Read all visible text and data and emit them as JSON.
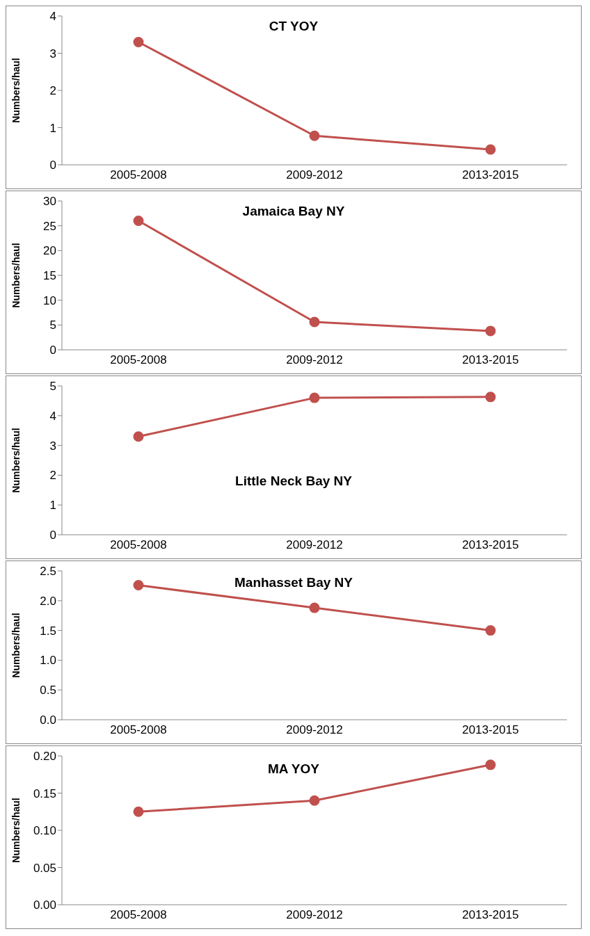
{
  "chart_data": [
    {
      "type": "line",
      "title": "CT YOY",
      "ylabel": "Numbers/haul",
      "categories": [
        "2005-2008",
        "2009-2012",
        "2013-2015"
      ],
      "series": [
        {
          "color": "#c0504d",
          "values": [
            3.3,
            0.78,
            0.41
          ]
        }
      ],
      "ylim": [
        0,
        4
      ],
      "yticks": [
        0,
        1,
        2,
        3,
        4
      ],
      "grid": false,
      "legend": false,
      "marker": "circle"
    },
    {
      "type": "line",
      "title": "Jamaica Bay NY",
      "ylabel": "Numbers/haul",
      "categories": [
        "2005-2008",
        "2009-2012",
        "2013-2015"
      ],
      "series": [
        {
          "color": "#c0504d",
          "values": [
            26,
            5.6,
            3.8
          ]
        }
      ],
      "ylim": [
        0,
        30
      ],
      "yticks": [
        0,
        5,
        10,
        15,
        20,
        25,
        30
      ],
      "grid": false,
      "legend": false,
      "marker": "circle"
    },
    {
      "type": "line",
      "title": "Little Neck Bay NY",
      "ylabel": "Numbers/haul",
      "categories": [
        "2005-2008",
        "2009-2012",
        "2013-2015"
      ],
      "series": [
        {
          "color": "#c0504d",
          "values": [
            3.3,
            4.6,
            4.63
          ]
        }
      ],
      "ylim": [
        0,
        5
      ],
      "yticks": [
        0,
        1,
        2,
        3,
        4,
        5
      ],
      "grid": false,
      "legend": false,
      "marker": "circle"
    },
    {
      "type": "line",
      "title": "Manhasset Bay NY",
      "ylabel": "Numbers/haul",
      "categories": [
        "2005-2008",
        "2009-2012",
        "2013-2015"
      ],
      "series": [
        {
          "color": "#c0504d",
          "values": [
            2.26,
            1.88,
            1.5
          ]
        }
      ],
      "ylim": [
        0,
        2.5
      ],
      "yticks": [
        {
          "value": 0,
          "label": "0.0"
        },
        0.5,
        {
          "value": 1,
          "label": "1.0"
        },
        1.5,
        {
          "value": 2,
          "label": "2.0"
        },
        2.5
      ],
      "grid": false,
      "legend": false,
      "marker": "circle"
    },
    {
      "type": "line",
      "title": "MA YOY",
      "ylabel": "Numbers/haul",
      "categories": [
        "2005-2008",
        "2009-2012",
        "2013-2015"
      ],
      "series": [
        {
          "color": "#c0504d",
          "values": [
            0.125,
            0.14,
            0.188
          ]
        }
      ],
      "ylim": [
        0,
        0.2
      ],
      "yticks": [
        {
          "value": 0,
          "label": "0.00"
        },
        0.05,
        {
          "value": 0.1,
          "label": "0.10"
        },
        0.15,
        {
          "value": 0.2,
          "label": "0.20"
        }
      ],
      "grid": false,
      "legend": false,
      "marker": "circle"
    }
  ]
}
